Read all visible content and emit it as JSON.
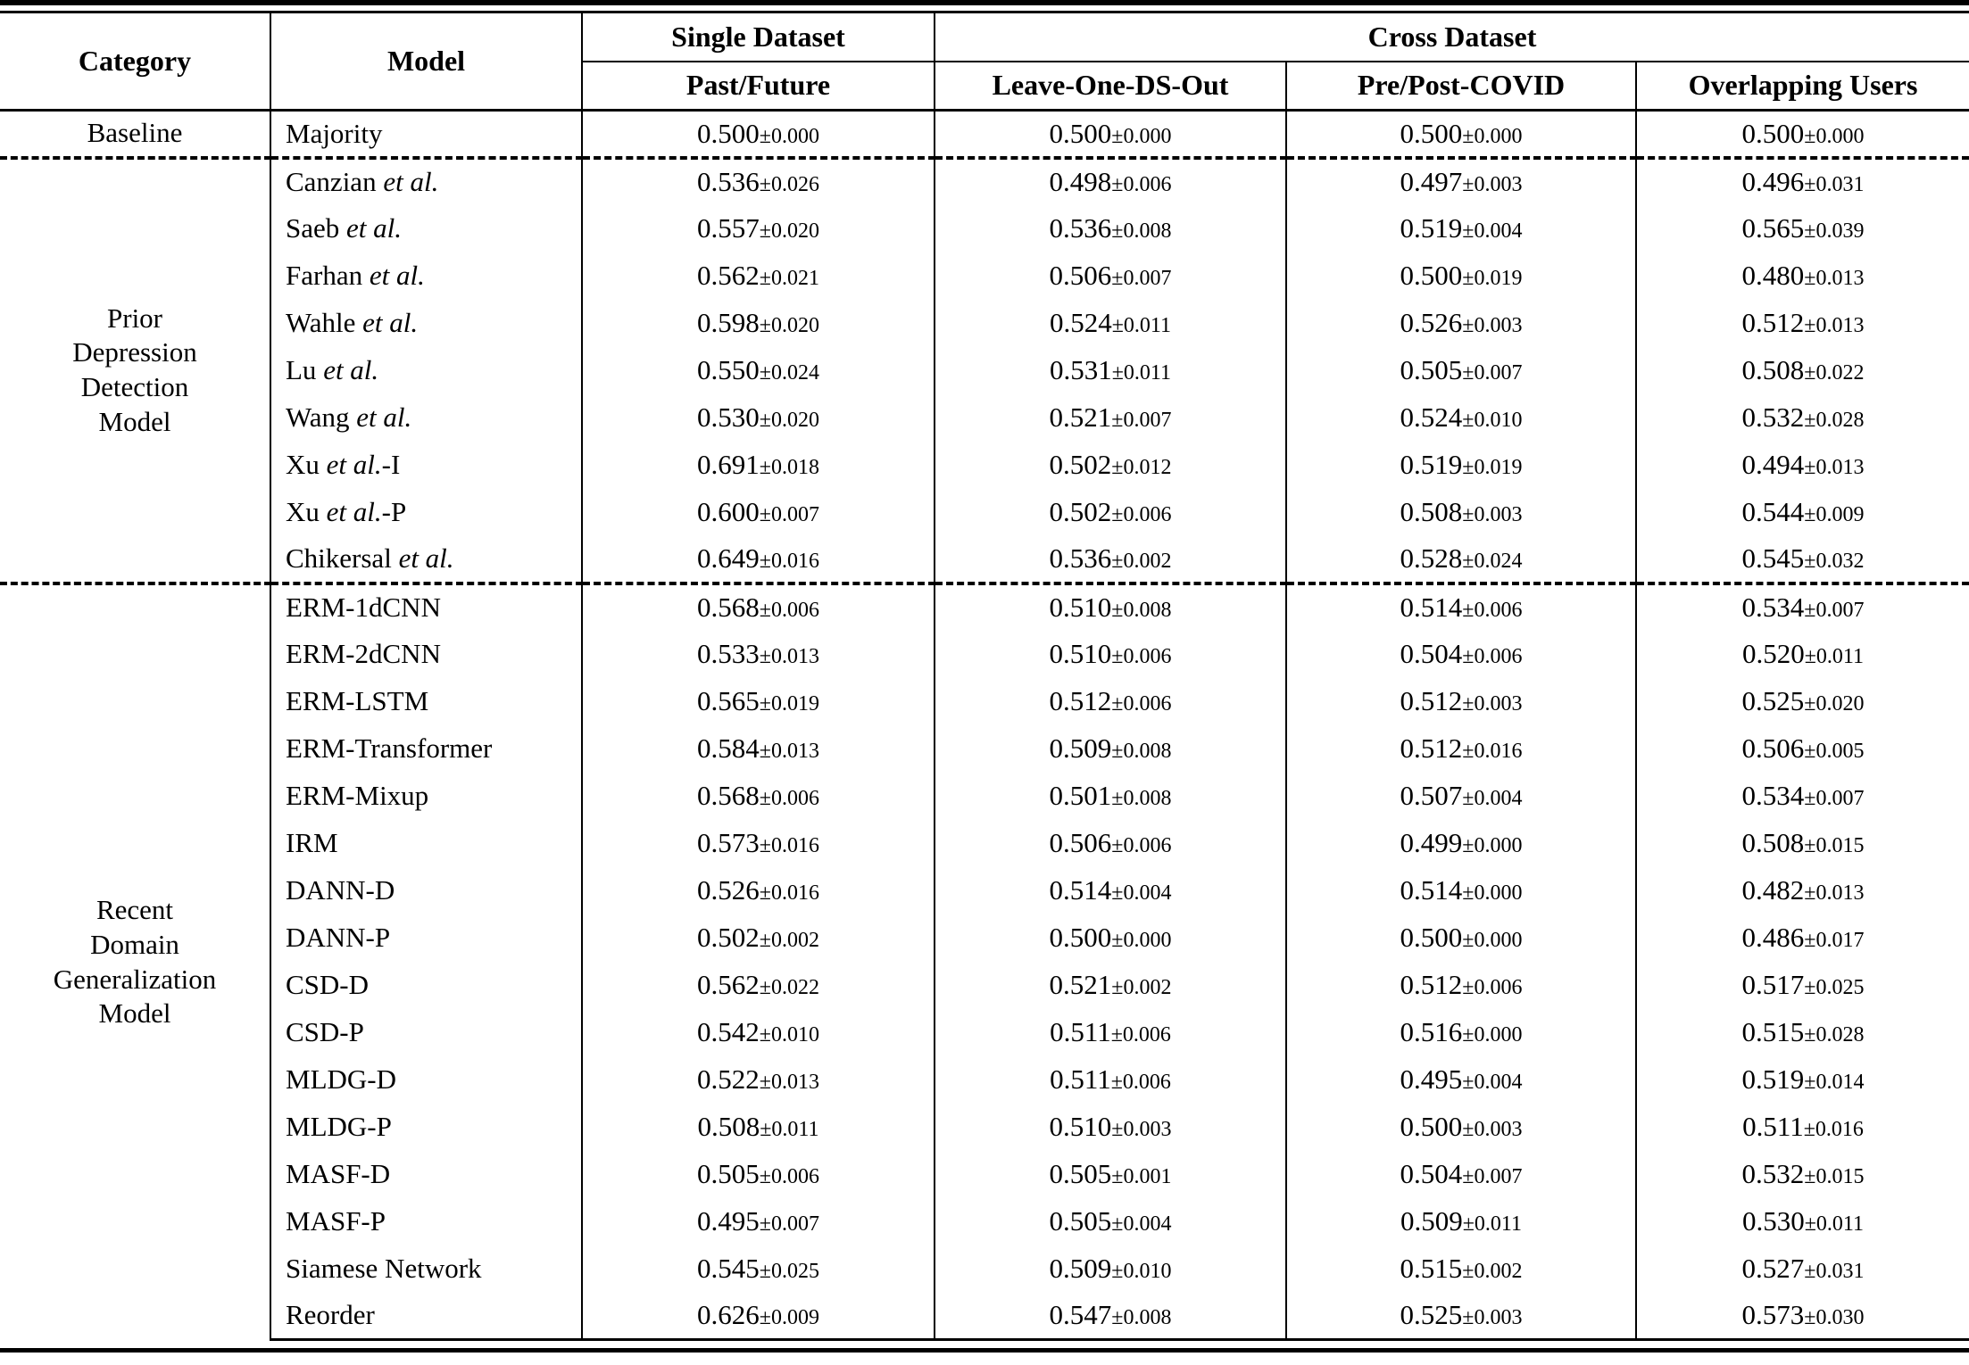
{
  "table": {
    "headers": {
      "category": "Category",
      "model": "Model",
      "single_dataset": "Single Dataset",
      "cross_dataset": "Cross Dataset",
      "sub": [
        "Past/Future",
        "Leave-One-DS-Out",
        "Pre/Post-COVID",
        "Overlapping Users"
      ]
    },
    "groups": [
      {
        "category_lines": [
          "Baseline"
        ],
        "rows": [
          {
            "model": [
              {
                "text": "Majority",
                "italic": false
              }
            ],
            "values": [
              "0.500±0.000",
              "0.500±0.000",
              "0.500±0.000",
              "0.500±0.000"
            ]
          }
        ]
      },
      {
        "category_lines": [
          "Prior",
          "Depression",
          "Detection",
          "Model"
        ],
        "rows": [
          {
            "model": [
              {
                "text": "Canzian ",
                "italic": false
              },
              {
                "text": "et al.",
                "italic": true
              }
            ],
            "values": [
              "0.536±0.026",
              "0.498±0.006",
              "0.497±0.003",
              "0.496±0.031"
            ]
          },
          {
            "model": [
              {
                "text": "Saeb ",
                "italic": false
              },
              {
                "text": "et al.",
                "italic": true
              }
            ],
            "values": [
              "0.557±0.020",
              "0.536±0.008",
              "0.519±0.004",
              "0.565±0.039"
            ]
          },
          {
            "model": [
              {
                "text": "Farhan ",
                "italic": false
              },
              {
                "text": "et al.",
                "italic": true
              }
            ],
            "values": [
              "0.562±0.021",
              "0.506±0.007",
              "0.500±0.019",
              "0.480±0.013"
            ]
          },
          {
            "model": [
              {
                "text": "Wahle ",
                "italic": false
              },
              {
                "text": "et al.",
                "italic": true
              }
            ],
            "values": [
              "0.598±0.020",
              "0.524±0.011",
              "0.526±0.003",
              "0.512±0.013"
            ]
          },
          {
            "model": [
              {
                "text": "Lu ",
                "italic": false
              },
              {
                "text": "et al.",
                "italic": true
              }
            ],
            "values": [
              "0.550±0.024",
              "0.531±0.011",
              "0.505±0.007",
              "0.508±0.022"
            ]
          },
          {
            "model": [
              {
                "text": "Wang ",
                "italic": false
              },
              {
                "text": "et al.",
                "italic": true
              }
            ],
            "values": [
              "0.530±0.020",
              "0.521±0.007",
              "0.524±0.010",
              "0.532±0.028"
            ]
          },
          {
            "model": [
              {
                "text": "Xu ",
                "italic": false
              },
              {
                "text": "et al.",
                "italic": true
              },
              {
                "text": "-I",
                "italic": false
              }
            ],
            "values": [
              "0.691±0.018",
              "0.502±0.012",
              "0.519±0.019",
              "0.494±0.013"
            ]
          },
          {
            "model": [
              {
                "text": "Xu ",
                "italic": false
              },
              {
                "text": "et al.",
                "italic": true
              },
              {
                "text": "-P",
                "italic": false
              }
            ],
            "values": [
              "0.600±0.007",
              "0.502±0.006",
              "0.508±0.003",
              "0.544±0.009"
            ]
          },
          {
            "model": [
              {
                "text": "Chikersal ",
                "italic": false
              },
              {
                "text": "et al.",
                "italic": true
              }
            ],
            "values": [
              "0.649±0.016",
              "0.536±0.002",
              "0.528±0.024",
              "0.545±0.032"
            ]
          }
        ]
      },
      {
        "category_lines": [
          "Recent",
          "Domain",
          "Generalization",
          "Model"
        ],
        "rows": [
          {
            "model": [
              {
                "text": "ERM-1dCNN",
                "italic": false
              }
            ],
            "values": [
              "0.568±0.006",
              "0.510±0.008",
              "0.514±0.006",
              "0.534±0.007"
            ]
          },
          {
            "model": [
              {
                "text": "ERM-2dCNN",
                "italic": false
              }
            ],
            "values": [
              "0.533±0.013",
              "0.510±0.006",
              "0.504±0.006",
              "0.520±0.011"
            ]
          },
          {
            "model": [
              {
                "text": "ERM-LSTM",
                "italic": false
              }
            ],
            "values": [
              "0.565±0.019",
              "0.512±0.006",
              "0.512±0.003",
              "0.525±0.020"
            ]
          },
          {
            "model": [
              {
                "text": "ERM-Transformer",
                "italic": false
              }
            ],
            "values": [
              "0.584±0.013",
              "0.509±0.008",
              "0.512±0.016",
              "0.506±0.005"
            ]
          },
          {
            "model": [
              {
                "text": "ERM-Mixup",
                "italic": false
              }
            ],
            "values": [
              "0.568±0.006",
              "0.501±0.008",
              "0.507±0.004",
              "0.534±0.007"
            ]
          },
          {
            "model": [
              {
                "text": "IRM",
                "italic": false
              }
            ],
            "values": [
              "0.573±0.016",
              "0.506±0.006",
              "0.499±0.000",
              "0.508±0.015"
            ]
          },
          {
            "model": [
              {
                "text": "DANN-D",
                "italic": false
              }
            ],
            "values": [
              "0.526±0.016",
              "0.514±0.004",
              "0.514±0.000",
              "0.482±0.013"
            ]
          },
          {
            "model": [
              {
                "text": "DANN-P",
                "italic": false
              }
            ],
            "values": [
              "0.502±0.002",
              "0.500±0.000",
              "0.500±0.000",
              "0.486±0.017"
            ]
          },
          {
            "model": [
              {
                "text": "CSD-D",
                "italic": false
              }
            ],
            "values": [
              "0.562±0.022",
              "0.521±0.002",
              "0.512±0.006",
              "0.517±0.025"
            ]
          },
          {
            "model": [
              {
                "text": "CSD-P",
                "italic": false
              }
            ],
            "values": [
              "0.542±0.010",
              "0.511±0.006",
              "0.516±0.000",
              "0.515±0.028"
            ]
          },
          {
            "model": [
              {
                "text": "MLDG-D",
                "italic": false
              }
            ],
            "values": [
              "0.522±0.013",
              "0.511±0.006",
              "0.495±0.004",
              "0.519±0.014"
            ]
          },
          {
            "model": [
              {
                "text": "MLDG-P",
                "italic": false
              }
            ],
            "values": [
              "0.508±0.011",
              "0.510±0.003",
              "0.500±0.003",
              "0.511±0.016"
            ]
          },
          {
            "model": [
              {
                "text": "MASF-D",
                "italic": false
              }
            ],
            "values": [
              "0.505±0.006",
              "0.505±0.001",
              "0.504±0.007",
              "0.532±0.015"
            ]
          },
          {
            "model": [
              {
                "text": "MASF-P",
                "italic": false
              }
            ],
            "values": [
              "0.495±0.007",
              "0.505±0.004",
              "0.509±0.011",
              "0.530±0.011"
            ]
          },
          {
            "model": [
              {
                "text": "Siamese Network",
                "italic": false
              }
            ],
            "values": [
              "0.545±0.025",
              "0.509±0.010",
              "0.515±0.002",
              "0.527±0.031"
            ]
          },
          {
            "model": [
              {
                "text": "Reorder",
                "italic": false
              }
            ],
            "values": [
              "0.626±0.009",
              "0.547±0.008",
              "0.525±0.003",
              "0.573±0.030"
            ]
          }
        ]
      }
    ]
  }
}
